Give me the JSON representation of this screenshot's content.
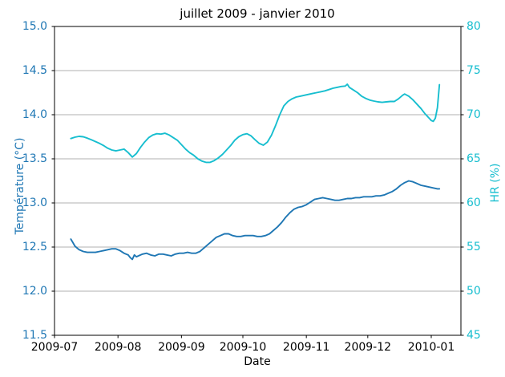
{
  "chart_data": {
    "type": "line",
    "title": "juillet 2009 - janvier 2010",
    "xlabel": "Date",
    "grid": "horizontal",
    "grid_color": "#b0b0b0",
    "legend": "none",
    "x_ticks": [
      {
        "label": "2009-07",
        "date": "2009-07-01"
      },
      {
        "label": "2009-08",
        "date": "2009-08-01"
      },
      {
        "label": "2009-09",
        "date": "2009-09-01"
      },
      {
        "label": "2009-10",
        "date": "2009-10-01"
      },
      {
        "label": "2009-11",
        "date": "2009-11-01"
      },
      {
        "label": "2009-12",
        "date": "2009-12-01"
      },
      {
        "label": "2010-01",
        "date": "2010-01-01"
      }
    ],
    "axes": {
      "left": {
        "label": "Température (°C)",
        "color": "#1f77b4",
        "min": 11.5,
        "max": 15.0,
        "tick_labels": [
          "15.0",
          "14.5",
          "14.0",
          "13.5",
          "13.0",
          "12.5",
          "12.0",
          "11.5"
        ],
        "ticks": [
          15.0,
          14.5,
          14.0,
          13.5,
          13.0,
          12.5,
          12.0,
          11.5
        ]
      },
      "right": {
        "label": "HR (%)",
        "color": "#17becf",
        "min": 45,
        "max": 80,
        "tick_labels": [
          "80",
          "75",
          "70",
          "65",
          "60",
          "55",
          "50",
          "45"
        ],
        "ticks": [
          80,
          75,
          70,
          65,
          60,
          55,
          50,
          45
        ]
      }
    },
    "series": [
      {
        "name": "temperature",
        "axis": "left",
        "color": "#1f77b4",
        "points": [
          [
            "2009-07-09",
            12.59
          ],
          [
            "2009-07-10",
            12.55
          ],
          [
            "2009-07-11",
            12.51
          ],
          [
            "2009-07-12",
            12.49
          ],
          [
            "2009-07-13",
            12.47
          ],
          [
            "2009-07-15",
            12.45
          ],
          [
            "2009-07-17",
            12.44
          ],
          [
            "2009-07-19",
            12.44
          ],
          [
            "2009-07-21",
            12.44
          ],
          [
            "2009-07-23",
            12.45
          ],
          [
            "2009-07-25",
            12.46
          ],
          [
            "2009-07-27",
            12.47
          ],
          [
            "2009-07-29",
            12.48
          ],
          [
            "2009-07-31",
            12.48
          ],
          [
            "2009-08-02",
            12.46
          ],
          [
            "2009-08-04",
            12.43
          ],
          [
            "2009-08-06",
            12.41
          ],
          [
            "2009-08-07",
            12.38
          ],
          [
            "2009-08-08",
            12.36
          ],
          [
            "2009-08-09",
            12.41
          ],
          [
            "2009-08-10",
            12.39
          ],
          [
            "2009-08-11",
            12.4
          ],
          [
            "2009-08-13",
            12.42
          ],
          [
            "2009-08-15",
            12.43
          ],
          [
            "2009-08-17",
            12.41
          ],
          [
            "2009-08-19",
            12.4
          ],
          [
            "2009-08-21",
            12.42
          ],
          [
            "2009-08-23",
            12.42
          ],
          [
            "2009-08-25",
            12.41
          ],
          [
            "2009-08-27",
            12.4
          ],
          [
            "2009-08-29",
            12.42
          ],
          [
            "2009-08-31",
            12.43
          ],
          [
            "2009-09-02",
            12.43
          ],
          [
            "2009-09-04",
            12.44
          ],
          [
            "2009-09-06",
            12.43
          ],
          [
            "2009-09-08",
            12.43
          ],
          [
            "2009-09-10",
            12.45
          ],
          [
            "2009-09-12",
            12.49
          ],
          [
            "2009-09-14",
            12.53
          ],
          [
            "2009-09-16",
            12.57
          ],
          [
            "2009-09-18",
            12.61
          ],
          [
            "2009-09-20",
            12.63
          ],
          [
            "2009-09-22",
            12.65
          ],
          [
            "2009-09-24",
            12.65
          ],
          [
            "2009-09-26",
            12.63
          ],
          [
            "2009-09-28",
            12.62
          ],
          [
            "2009-09-30",
            12.62
          ],
          [
            "2009-10-02",
            12.63
          ],
          [
            "2009-10-04",
            12.63
          ],
          [
            "2009-10-06",
            12.63
          ],
          [
            "2009-10-08",
            12.62
          ],
          [
            "2009-10-10",
            12.62
          ],
          [
            "2009-10-12",
            12.63
          ],
          [
            "2009-10-14",
            12.65
          ],
          [
            "2009-10-16",
            12.69
          ],
          [
            "2009-10-18",
            12.73
          ],
          [
            "2009-10-20",
            12.78
          ],
          [
            "2009-10-22",
            12.84
          ],
          [
            "2009-10-24",
            12.89
          ],
          [
            "2009-10-26",
            12.93
          ],
          [
            "2009-10-28",
            12.95
          ],
          [
            "2009-10-30",
            12.96
          ],
          [
            "2009-11-01",
            12.98
          ],
          [
            "2009-11-03",
            13.01
          ],
          [
            "2009-11-05",
            13.04
          ],
          [
            "2009-11-07",
            13.05
          ],
          [
            "2009-11-09",
            13.06
          ],
          [
            "2009-11-11",
            13.05
          ],
          [
            "2009-11-13",
            13.04
          ],
          [
            "2009-11-15",
            13.03
          ],
          [
            "2009-11-17",
            13.03
          ],
          [
            "2009-11-19",
            13.04
          ],
          [
            "2009-11-21",
            13.05
          ],
          [
            "2009-11-23",
            13.05
          ],
          [
            "2009-11-25",
            13.06
          ],
          [
            "2009-11-27",
            13.06
          ],
          [
            "2009-11-29",
            13.07
          ],
          [
            "2009-12-01",
            13.07
          ],
          [
            "2009-12-03",
            13.07
          ],
          [
            "2009-12-05",
            13.08
          ],
          [
            "2009-12-07",
            13.08
          ],
          [
            "2009-12-09",
            13.09
          ],
          [
            "2009-12-11",
            13.11
          ],
          [
            "2009-12-13",
            13.13
          ],
          [
            "2009-12-15",
            13.16
          ],
          [
            "2009-12-17",
            13.2
          ],
          [
            "2009-12-19",
            13.23
          ],
          [
            "2009-12-21",
            13.25
          ],
          [
            "2009-12-23",
            13.24
          ],
          [
            "2009-12-25",
            13.22
          ],
          [
            "2009-12-27",
            13.2
          ],
          [
            "2009-12-29",
            13.19
          ],
          [
            "2009-12-31",
            13.18
          ],
          [
            "2010-01-02",
            13.17
          ],
          [
            "2010-01-04",
            13.16
          ],
          [
            "2010-01-05",
            13.16
          ]
        ]
      },
      {
        "name": "hr",
        "axis": "right",
        "color": "#17becf",
        "points": [
          [
            "2009-07-09",
            67.3
          ],
          [
            "2009-07-11",
            67.45
          ],
          [
            "2009-07-13",
            67.55
          ],
          [
            "2009-07-15",
            67.5
          ],
          [
            "2009-07-17",
            67.35
          ],
          [
            "2009-07-19",
            67.15
          ],
          [
            "2009-07-21",
            66.95
          ],
          [
            "2009-07-23",
            66.75
          ],
          [
            "2009-07-25",
            66.5
          ],
          [
            "2009-07-27",
            66.2
          ],
          [
            "2009-07-29",
            66.0
          ],
          [
            "2009-07-31",
            65.9
          ],
          [
            "2009-08-02",
            66.0
          ],
          [
            "2009-08-04",
            66.1
          ],
          [
            "2009-08-06",
            65.7
          ],
          [
            "2009-08-08",
            65.2
          ],
          [
            "2009-08-10",
            65.6
          ],
          [
            "2009-08-12",
            66.3
          ],
          [
            "2009-08-14",
            66.9
          ],
          [
            "2009-08-16",
            67.4
          ],
          [
            "2009-08-18",
            67.7
          ],
          [
            "2009-08-20",
            67.85
          ],
          [
            "2009-08-22",
            67.8
          ],
          [
            "2009-08-24",
            67.9
          ],
          [
            "2009-08-26",
            67.7
          ],
          [
            "2009-08-28",
            67.4
          ],
          [
            "2009-08-30",
            67.1
          ],
          [
            "2009-09-01",
            66.6
          ],
          [
            "2009-09-03",
            66.1
          ],
          [
            "2009-09-05",
            65.7
          ],
          [
            "2009-09-07",
            65.4
          ],
          [
            "2009-09-09",
            65.0
          ],
          [
            "2009-09-11",
            64.75
          ],
          [
            "2009-09-13",
            64.6
          ],
          [
            "2009-09-15",
            64.6
          ],
          [
            "2009-09-17",
            64.8
          ],
          [
            "2009-09-19",
            65.1
          ],
          [
            "2009-09-21",
            65.5
          ],
          [
            "2009-09-23",
            66.0
          ],
          [
            "2009-09-25",
            66.5
          ],
          [
            "2009-09-27",
            67.1
          ],
          [
            "2009-09-29",
            67.5
          ],
          [
            "2009-10-01",
            67.75
          ],
          [
            "2009-10-03",
            67.85
          ],
          [
            "2009-10-05",
            67.6
          ],
          [
            "2009-10-07",
            67.15
          ],
          [
            "2009-10-09",
            66.75
          ],
          [
            "2009-10-11",
            66.55
          ],
          [
            "2009-10-13",
            66.9
          ],
          [
            "2009-10-15",
            67.7
          ],
          [
            "2009-10-17",
            68.8
          ],
          [
            "2009-10-19",
            70.0
          ],
          [
            "2009-10-21",
            71.0
          ],
          [
            "2009-10-23",
            71.5
          ],
          [
            "2009-10-25",
            71.8
          ],
          [
            "2009-10-27",
            72.0
          ],
          [
            "2009-10-29",
            72.1
          ],
          [
            "2009-10-31",
            72.2
          ],
          [
            "2009-11-02",
            72.3
          ],
          [
            "2009-11-04",
            72.4
          ],
          [
            "2009-11-06",
            72.5
          ],
          [
            "2009-11-08",
            72.6
          ],
          [
            "2009-11-10",
            72.7
          ],
          [
            "2009-11-12",
            72.85
          ],
          [
            "2009-11-14",
            73.0
          ],
          [
            "2009-11-16",
            73.1
          ],
          [
            "2009-11-18",
            73.2
          ],
          [
            "2009-11-20",
            73.25
          ],
          [
            "2009-11-21",
            73.45
          ],
          [
            "2009-11-22",
            73.1
          ],
          [
            "2009-11-24",
            72.8
          ],
          [
            "2009-11-26",
            72.5
          ],
          [
            "2009-11-28",
            72.1
          ],
          [
            "2009-11-30",
            71.85
          ],
          [
            "2009-12-02",
            71.65
          ],
          [
            "2009-12-04",
            71.55
          ],
          [
            "2009-12-06",
            71.45
          ],
          [
            "2009-12-08",
            71.4
          ],
          [
            "2009-12-10",
            71.45
          ],
          [
            "2009-12-12",
            71.5
          ],
          [
            "2009-12-14",
            71.5
          ],
          [
            "2009-12-16",
            71.8
          ],
          [
            "2009-12-18",
            72.2
          ],
          [
            "2009-12-19",
            72.35
          ],
          [
            "2009-12-21",
            72.1
          ],
          [
            "2009-12-23",
            71.7
          ],
          [
            "2009-12-25",
            71.2
          ],
          [
            "2009-12-27",
            70.7
          ],
          [
            "2009-12-29",
            70.1
          ],
          [
            "2009-12-31",
            69.6
          ],
          [
            "2010-01-01",
            69.35
          ],
          [
            "2010-01-02",
            69.25
          ],
          [
            "2010-01-03",
            69.6
          ],
          [
            "2010-01-04",
            70.8
          ],
          [
            "2010-01-05",
            73.4
          ]
        ]
      }
    ]
  }
}
